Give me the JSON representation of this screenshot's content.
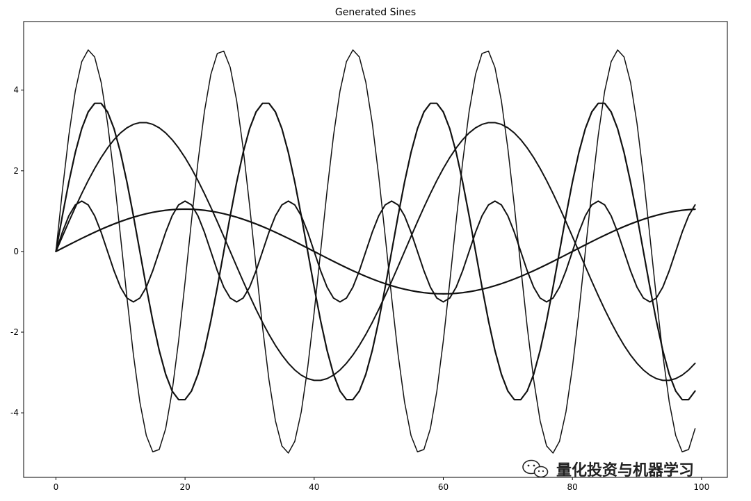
{
  "chart_data": {
    "type": "line",
    "title": "Generated Sines",
    "xlabel": "",
    "ylabel": "",
    "xlim": [
      -5,
      104
    ],
    "ylim": [
      -5.6,
      5.7
    ],
    "xticks": [
      0,
      20,
      40,
      60,
      80,
      100
    ],
    "yticks": [
      -4,
      -2,
      0,
      2,
      4
    ],
    "grid": false,
    "series": [
      {
        "amplitude": 5.0,
        "period": 20.5,
        "phase": 0.0,
        "stroke_width": 1.5
      },
      {
        "amplitude": 3.7,
        "period": 26.0,
        "phase": 0.0,
        "stroke_width": 2.2
      },
      {
        "amplitude": 1.25,
        "period": 16.0,
        "phase": 0.0,
        "stroke_width": 2.0
      },
      {
        "amplitude": 3.2,
        "period": 54.0,
        "phase": 0.0,
        "stroke_width": 2.0
      },
      {
        "amplitude": 1.05,
        "period": 80.0,
        "phase": 0.0,
        "stroke_width": 2.2
      }
    ]
  },
  "watermark": {
    "text": "量化投资与机器学习",
    "icon": "wechat-icon"
  }
}
